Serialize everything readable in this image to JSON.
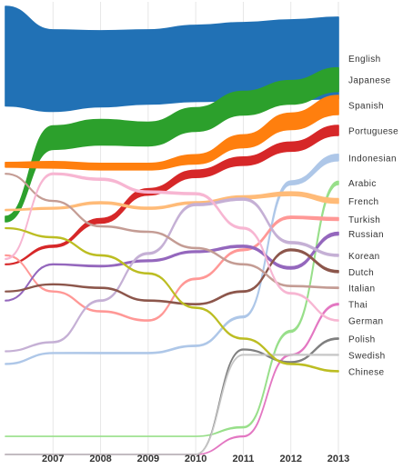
{
  "chart_data": {
    "type": "area",
    "subtype": "stream-ribbons",
    "title": "",
    "xlabel": "",
    "ylabel": "",
    "x": [
      2006,
      2007,
      2008,
      2009,
      2010,
      2011,
      2012,
      2013
    ],
    "x_tick_labels": [
      "2007",
      "2008",
      "2009",
      "2010",
      "2011",
      "2012",
      "2013"
    ],
    "x_range": [
      2006,
      2013
    ],
    "grid": "vertical",
    "legend": "right-side end labels",
    "series": [
      {
        "name": "English",
        "color": "#2171b5",
        "y": [
          10.0,
          9.2,
          9.3,
          9.4,
          9.6,
          9.7,
          9.8,
          9.9
        ],
        "w": [
          5.5,
          4.5,
          4.2,
          4.1,
          4.2,
          4.3,
          4.4,
          4.5
        ],
        "label_y": 9.9
      },
      {
        "name": "Japanese",
        "color": "#2ca02c",
        "y": [
          1.0,
          5.5,
          5.8,
          5.7,
          6.5,
          7.4,
          8.0,
          8.7
        ],
        "w": [
          0.3,
          1.3,
          1.4,
          1.3,
          1.3,
          1.3,
          1.3,
          1.3
        ],
        "label_y": 8.7
      },
      {
        "name": "Spanish",
        "color": "#ff7f0e",
        "y": [
          4.0,
          4.0,
          3.9,
          3.9,
          4.3,
          5.3,
          6.4,
          7.3
        ],
        "w": [
          0.25,
          0.35,
          0.35,
          0.35,
          0.5,
          0.7,
          0.9,
          1.05
        ],
        "label_y": 7.3
      },
      {
        "name": "Portuguese",
        "color": "#d62728",
        "y": [
          -1.5,
          -0.5,
          0.9,
          2.5,
          3.5,
          4.2,
          5.0,
          5.9
        ],
        "w": [
          0.03,
          0.1,
          0.25,
          0.35,
          0.4,
          0.45,
          0.5,
          0.55
        ],
        "label_y": 5.9
      },
      {
        "name": "Indonesian",
        "color": "#aec7e8",
        "y": [
          -7.0,
          -6.4,
          -6.4,
          -6.4,
          -6.0,
          -4.4,
          3.0,
          4.4
        ],
        "w": [
          0.04,
          0.04,
          0.05,
          0.05,
          0.06,
          0.08,
          0.2,
          0.35
        ],
        "label_y": 4.4
      },
      {
        "name": "Arabic",
        "color": "#98df8a",
        "y": [
          -11.0,
          -11.0,
          -11.0,
          -11.0,
          -11.0,
          -10.5,
          -5.2,
          3.0
        ],
        "w": [
          0.0,
          0.0,
          0.0,
          0.0,
          0.0,
          0.05,
          0.1,
          0.18
        ],
        "label_y": 3.0
      },
      {
        "name": "French",
        "color": "#ffbb78",
        "y": [
          1.5,
          1.6,
          1.9,
          1.6,
          1.9,
          2.2,
          2.4,
          2.0
        ],
        "w": [
          0.05,
          0.08,
          0.1,
          0.1,
          0.1,
          0.15,
          0.2,
          0.25
        ],
        "label_y": 2.0
      },
      {
        "name": "Turkish",
        "color": "#ff9896",
        "y": [
          -1.0,
          -3.0,
          -4.1,
          -4.6,
          -2.3,
          -0.7,
          1.1,
          1.0
        ],
        "w": [
          0.03,
          0.04,
          0.05,
          0.05,
          0.06,
          0.08,
          0.12,
          0.15
        ],
        "label_y": 1.0
      },
      {
        "name": "Russian",
        "color": "#9467bd",
        "y": [
          -3.5,
          -1.5,
          -1.6,
          -1.3,
          -0.8,
          -0.5,
          -1.7,
          0.2
        ],
        "w": [
          0.03,
          0.04,
          0.06,
          0.08,
          0.08,
          0.1,
          0.12,
          0.15
        ],
        "label_y": 0.2
      },
      {
        "name": "Korean",
        "color": "#c5b0d5",
        "y": [
          -6.3,
          -5.8,
          -3.5,
          -0.9,
          1.8,
          2.1,
          -0.3,
          -1.0
        ],
        "w": [
          0.03,
          0.05,
          0.06,
          0.08,
          0.1,
          0.1,
          0.1,
          0.1
        ],
        "label_y": -1.0
      },
      {
        "name": "Dutch",
        "color": "#8c564b",
        "y": [
          -3.0,
          -2.6,
          -2.8,
          -3.5,
          -3.7,
          -3.0,
          -0.7,
          -1.9
        ],
        "w": [
          0.03,
          0.04,
          0.05,
          0.05,
          0.05,
          0.06,
          0.08,
          0.1
        ],
        "label_y": -1.9
      },
      {
        "name": "Italian",
        "color": "#c49c94",
        "y": [
          3.5,
          2.0,
          0.6,
          0.3,
          -0.6,
          -1.5,
          -2.7,
          -2.8
        ],
        "w": [
          0.03,
          0.04,
          0.05,
          0.05,
          0.05,
          0.05,
          0.05,
          0.06
        ],
        "label_y": -2.8
      },
      {
        "name": "Thai",
        "color": "#e377c2",
        "y": [
          -12.0,
          -12.0,
          -12.0,
          -12.0,
          -12.0,
          -11.0,
          -6.5,
          -3.7
        ],
        "w": [
          0.0,
          0.0,
          0.0,
          0.0,
          0.0,
          0.03,
          0.05,
          0.08
        ],
        "label_y": -3.7
      },
      {
        "name": "German",
        "color": "#f7b6d2",
        "y": [
          -1.2,
          3.5,
          3.2,
          2.5,
          2.4,
          0.5,
          -3.1,
          -4.6
        ],
        "w": [
          0.04,
          0.08,
          0.1,
          0.1,
          0.1,
          0.08,
          0.06,
          0.05
        ],
        "label_y": -4.6
      },
      {
        "name": "Polish",
        "color": "#7f7f7f",
        "y": [
          -12.0,
          -12.0,
          -12.0,
          -12.0,
          -12.0,
          -6.2,
          -6.9,
          -5.6
        ],
        "w": [
          0.0,
          0.0,
          0.0,
          0.0,
          0.0,
          0.03,
          0.04,
          0.06
        ],
        "label_y": -5.6
      },
      {
        "name": "Swedish",
        "color": "#c7c7c7",
        "y": [
          -12.0,
          -12.0,
          -12.0,
          -12.0,
          -12.0,
          -6.5,
          -6.5,
          -6.5
        ],
        "w": [
          0.0,
          0.0,
          0.0,
          0.0,
          0.0,
          0.02,
          0.03,
          0.04
        ],
        "label_y": -6.5
      },
      {
        "name": "Chinese",
        "color": "#bcbd22",
        "y": [
          0.5,
          0.0,
          -1.0,
          -2.0,
          -3.9,
          -5.6,
          -7.0,
          -7.4
        ],
        "w": [
          0.03,
          0.04,
          0.05,
          0.05,
          0.05,
          0.05,
          0.05,
          0.05
        ],
        "label_y": -7.4
      }
    ]
  }
}
